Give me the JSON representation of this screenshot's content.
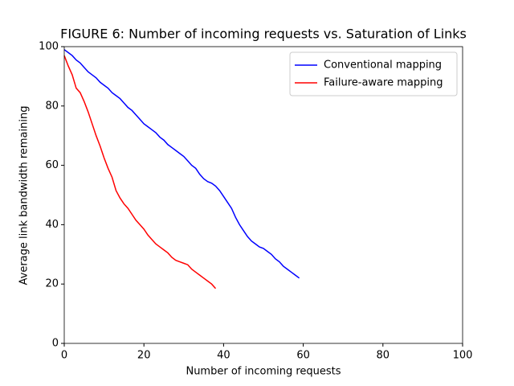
{
  "chart_data": {
    "type": "line",
    "title": "FIGURE 6: Number of incoming requests vs. Saturation of Links",
    "xlabel": "Number of incoming requests",
    "ylabel": "Average link bandwidth remaining",
    "xlim": [
      0,
      100
    ],
    "ylim": [
      0,
      100
    ],
    "xticks": [
      0,
      20,
      40,
      60,
      80,
      100
    ],
    "yticks": [
      0,
      20,
      40,
      60,
      80,
      100
    ],
    "grid": false,
    "legend": "upper-right",
    "series": [
      {
        "name": "Conventional mapping",
        "color": "#0000ff",
        "x": [
          0,
          1,
          2,
          3,
          4,
          5,
          6,
          7,
          8,
          9,
          10,
          11,
          12,
          13,
          14,
          15,
          16,
          17,
          18,
          19,
          20,
          21,
          22,
          23,
          24,
          25,
          26,
          27,
          28,
          29,
          30,
          31,
          32,
          33,
          34,
          35,
          36,
          37,
          38,
          39,
          40,
          41,
          42,
          43,
          44,
          45,
          46,
          47,
          48,
          49,
          50,
          51,
          52,
          53,
          54,
          55,
          56,
          57,
          58,
          59
        ],
        "values": [
          99,
          98,
          97,
          95.5,
          94.5,
          93,
          91.5,
          90.5,
          89.5,
          88,
          87,
          86,
          84.5,
          83.5,
          82.5,
          81,
          79.5,
          78.5,
          77,
          75.5,
          74,
          73,
          72,
          71,
          69.5,
          68.5,
          67,
          66,
          65,
          64,
          63,
          61.5,
          60,
          59,
          57,
          55.5,
          54.5,
          54,
          53,
          51.5,
          49.5,
          47.5,
          45.5,
          42.5,
          40,
          38,
          36,
          34.5,
          33.5,
          32.5,
          32,
          31,
          30,
          28.5,
          27.5,
          26,
          25,
          24,
          23,
          22
        ]
      },
      {
        "name": "Failure-aware mapping",
        "color": "#ff0000",
        "x": [
          0,
          1,
          2,
          3,
          4,
          5,
          6,
          7,
          8,
          9,
          10,
          11,
          12,
          13,
          14,
          15,
          16,
          17,
          18,
          19,
          20,
          21,
          22,
          23,
          24,
          25,
          26,
          27,
          28,
          29,
          30,
          31,
          32,
          33,
          34,
          35,
          36,
          37,
          38
        ],
        "values": [
          97,
          93.5,
          90.5,
          86,
          84.5,
          81.5,
          78,
          74,
          70,
          66.5,
          62.5,
          59,
          56,
          51.5,
          49,
          47,
          45.5,
          43.5,
          41.5,
          40,
          38.5,
          36.5,
          35,
          33.5,
          32.5,
          31.5,
          30.5,
          29,
          28,
          27.5,
          27,
          26.5,
          25,
          24,
          23,
          22,
          21,
          20,
          18.5
        ]
      }
    ]
  }
}
